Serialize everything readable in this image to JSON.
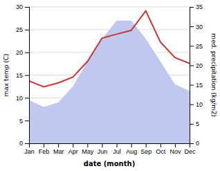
{
  "chart_data": {
    "type": "line",
    "xlabel": "date (month)",
    "ylabel": "max temp (C)",
    "y2label": "med. precipitation (kg/m2)",
    "categories": [
      "Jan",
      "Feb",
      "Mar",
      "Apr",
      "May",
      "Jun",
      "Jul",
      "Aug",
      "Sep",
      "Oct",
      "Nov",
      "Dec"
    ],
    "series": [
      {
        "type": "area",
        "color": "#c0c8f0",
        "values": [
          9.5,
          8.0,
          9.0,
          12.5,
          18.0,
          23.0,
          27.0,
          27.0,
          23.0,
          18.0,
          13.0,
          11.5
        ]
      },
      {
        "type": "line",
        "color": "#cc3333",
        "axis": "y2",
        "values": [
          16.0,
          14.5,
          15.5,
          17.0,
          21.0,
          27.0,
          28.0,
          29.0,
          34.0,
          26.0,
          22.0,
          20.5
        ]
      }
    ],
    "ylim": [
      0,
      30
    ],
    "yticks": [
      0,
      5,
      10,
      15,
      20,
      25,
      30
    ],
    "y2lim": [
      0,
      35
    ],
    "y2ticks": [
      0,
      5,
      10,
      15,
      20,
      25,
      30,
      35
    ],
    "grid": true
  }
}
